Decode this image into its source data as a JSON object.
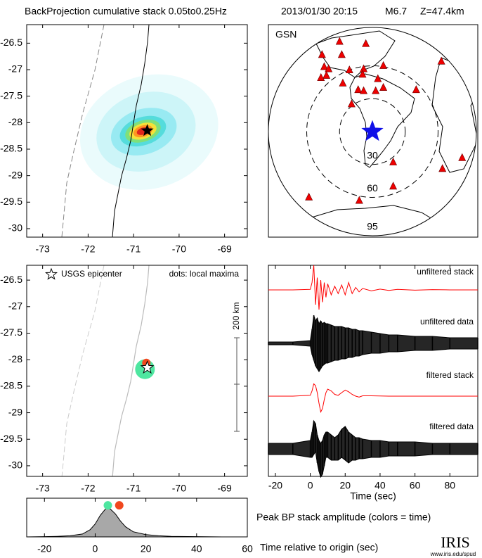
{
  "header": {
    "title": "BackProjection cumulative stack 0.05to0.25Hz",
    "date": "2013/01/30 20:15",
    "magnitude": "M6.7",
    "depth": "Z=47.4km"
  },
  "chart_data": [
    {
      "type": "map",
      "xlim": [
        -73.35,
        -68.5
      ],
      "ylim": [
        -30.16,
        -26.15
      ],
      "xticks": [
        -73,
        -72,
        -71,
        -70,
        -69
      ],
      "yticks": [
        -30,
        -29.5,
        -29,
        -28.5,
        -28,
        -27.5,
        -27,
        -26.5
      ],
      "epicenter": {
        "x": -70.7,
        "y": -28.15
      }
    },
    {
      "type": "globe",
      "label": "GSN",
      "rings": [
        30,
        60,
        95
      ],
      "source": {
        "x": 0,
        "y": 0
      },
      "stations": {
        "x": [
          -46,
          -28,
          -44,
          -40,
          -42,
          -21,
          -8,
          10,
          -6,
          -30,
          63,
          40,
          -47,
          -27,
          -13,
          -9,
          5,
          10,
          3,
          -8,
          -19,
          19,
          19,
          -12,
          -58,
          64,
          82
        ],
        "y": [
          70,
          70,
          59,
          57,
          51,
          56,
          57,
          60,
          80,
          82,
          64,
          38,
          49,
          44,
          38,
          52,
          48,
          40,
          37,
          37,
          25,
          -28,
          -50,
          -63,
          -60,
          -34,
          -24
        ]
      }
    },
    {
      "type": "map",
      "xlim": [
        -73.35,
        -68.5
      ],
      "ylim": [
        -30.2,
        -26.22
      ],
      "xticks": [
        -73,
        -72,
        -71,
        -70,
        -69
      ],
      "yticks": [
        -30,
        -29.5,
        -29,
        -28.5,
        -28,
        -27.5,
        -27,
        -26.5
      ],
      "epicenter": {
        "x": -70.7,
        "y": -28.15
      },
      "legend": "USGS epicenter",
      "note": "dots: local maxima",
      "scale_label": "200 km",
      "maxima": {
        "x": [
          -70.75,
          -70.72
        ],
        "y": [
          -28.18,
          -28.06
        ],
        "colors": [
          "#4ee6a0",
          "#f0481e"
        ]
      }
    },
    {
      "type": "waveform",
      "xlim": [
        -24,
        96
      ],
      "xticks": [
        -20,
        0,
        20,
        40,
        60,
        80
      ],
      "xlabel": "Time (sec)",
      "x": [
        -24,
        -10,
        0,
        1,
        2,
        3,
        4,
        5,
        6,
        7,
        8,
        9,
        10,
        12,
        14,
        16,
        18,
        20,
        22,
        24,
        26,
        28,
        30,
        35,
        40,
        45,
        50,
        60,
        70,
        80,
        96
      ],
      "series": [
        {
          "name": "unfiltered stack",
          "color": "#ff0000",
          "values": [
            0,
            0,
            0.02,
            0.3,
            1,
            -0.6,
            0.5,
            -0.8,
            0.4,
            -0.5,
            0.3,
            -0.3,
            0.25,
            -0.2,
            0.15,
            -0.15,
            0.2,
            -0.2,
            0.3,
            -0.15,
            0.1,
            -0.08,
            0.06,
            -0.04,
            0.03,
            -0.02,
            0.02,
            -0.01,
            0.01,
            0,
            0
          ]
        },
        {
          "name": "unfiltered data",
          "color": "#000000",
          "max": [
            0.05,
            0.05,
            0.1,
            0.5,
            1,
            0.8,
            0.9,
            0.7,
            0.8,
            0.7,
            0.75,
            0.7,
            0.7,
            0.65,
            0.6,
            0.6,
            0.6,
            0.55,
            0.55,
            0.5,
            0.5,
            0.45,
            0.45,
            0.4,
            0.35,
            0.3,
            0.3,
            0.25,
            0.25,
            0.2,
            0.2
          ],
          "min": [
            -0.05,
            -0.05,
            -0.1,
            -0.4,
            -0.6,
            -0.8,
            -0.9,
            -1,
            -0.9,
            -0.8,
            -0.75,
            -0.7,
            -0.7,
            -0.65,
            -0.6,
            -0.6,
            -0.55,
            -0.55,
            -0.5,
            -0.5,
            -0.45,
            -0.45,
            -0.4,
            -0.35,
            -0.35,
            -0.3,
            -0.3,
            -0.25,
            -0.25,
            -0.2,
            -0.2
          ]
        },
        {
          "name": "filtered stack",
          "color": "#ff0000",
          "values": [
            0,
            0,
            0.05,
            0.3,
            0.7,
            0.6,
            0.2,
            -0.4,
            -0.9,
            -0.7,
            -0.2,
            0.2,
            0.4,
            0.3,
            0.1,
            0.05,
            0.2,
            0.35,
            0.25,
            0.1,
            0,
            -0.05,
            0.02,
            0.02,
            0.01,
            0,
            0,
            0,
            0,
            0,
            0
          ]
        },
        {
          "name": "filtered data",
          "color": "#000000",
          "max": [
            0.2,
            0.2,
            0.3,
            0.6,
            1,
            0.9,
            0.5,
            0.3,
            0.2,
            0.3,
            0.5,
            0.6,
            0.6,
            0.5,
            0.4,
            0.5,
            0.7,
            0.8,
            0.6,
            0.5,
            0.4,
            0.4,
            0.35,
            0.3,
            0.3,
            0.25,
            0.25,
            0.25,
            0.2,
            0.2,
            0.2
          ],
          "min": [
            -0.2,
            -0.2,
            -0.3,
            -0.3,
            -0.2,
            -0.1,
            -0.5,
            -0.8,
            -1,
            -0.9,
            -0.6,
            -0.3,
            -0.3,
            -0.4,
            -0.4,
            -0.4,
            -0.3,
            -0.4,
            -0.5,
            -0.4,
            -0.4,
            -0.35,
            -0.35,
            -0.3,
            -0.3,
            -0.25,
            -0.25,
            -0.25,
            -0.2,
            -0.2,
            -0.2
          ]
        }
      ]
    },
    {
      "type": "area",
      "xlim": [
        -27,
        60
      ],
      "ylim": [
        0,
        1.35
      ],
      "xticks": [
        -20,
        0,
        20,
        40,
        60
      ],
      "xlabel": "Time relative to origin (sec)",
      "caption": "Peak BP stack amplitude (colors = time)",
      "color": "#a8a8a8",
      "x": [
        -27,
        -20,
        -15,
        -10,
        -5,
        -2,
        0,
        2,
        4,
        5,
        6,
        8,
        10,
        12,
        15,
        20,
        25,
        30,
        40,
        50,
        60
      ],
      "values": [
        0,
        0.01,
        0.02,
        0.04,
        0.1,
        0.25,
        0.45,
        0.75,
        0.97,
        1,
        0.97,
        0.8,
        0.55,
        0.35,
        0.18,
        0.08,
        0.04,
        0.02,
        0.01,
        0,
        0
      ],
      "points": {
        "x": [
          5,
          9.5
        ],
        "y": [
          1.1,
          1.1
        ],
        "colors": [
          "#4ee6a0",
          "#f0481e"
        ]
      }
    }
  ],
  "logo": {
    "name": "IRIS",
    "url": "www.iris.edu/spud"
  }
}
